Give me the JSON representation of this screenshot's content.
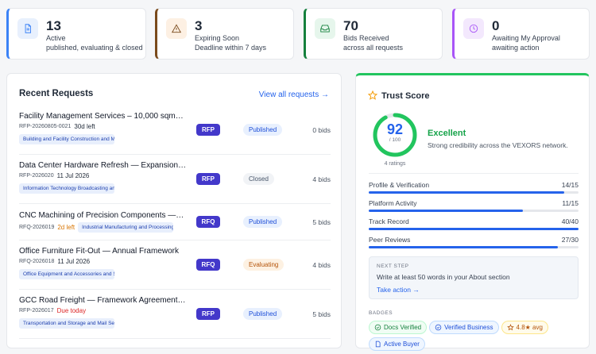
{
  "stats": [
    {
      "value": 13,
      "label": "Active",
      "sub": "published, evaluating & closed",
      "color": "#3b82f6",
      "bg": "#e8f0fd"
    },
    {
      "value": 3,
      "label": "Expiring Soon",
      "sub": "Deadline within 7 days",
      "color": "#7a4a1c",
      "bg": "#fdf0e3"
    },
    {
      "value": 70,
      "label": "Bids Received",
      "sub": "across all requests",
      "color": "#15803d",
      "bg": "#e6f6ec"
    },
    {
      "value": 0,
      "label": "Awaiting My Approval",
      "sub": "awaiting action",
      "color": "#a855f7",
      "bg": "#f3e8fd"
    }
  ],
  "recent": {
    "title": "Recent Requests",
    "link": "View all requests →",
    "rows": [
      {
        "title": "Facility Management Services – 10,000 sqm…",
        "id": "RFP-20260805-0021",
        "when": "30d left",
        "when_color": "#1f2937",
        "tag": "Building and Facility Construction and Maintenance",
        "type": "RFP",
        "status": "Published",
        "bids": "0 bids"
      },
      {
        "title": "Data Center Hardware Refresh — Expansion…",
        "id": "RFP-2026020",
        "when": "11 Jul 2026",
        "when_color": "#1f2937",
        "tag": "Information Technology Broadcasting and Telecommunications",
        "type": "RFP",
        "status": "Closed",
        "bids": "4 bids"
      },
      {
        "title": "CNC Machining of Precision Components —…",
        "id": "RFQ-2026019",
        "when": "2d left",
        "when_color": "#d97706",
        "tag": "Industrial Manufacturing and Processing Machinery",
        "type": "RFQ",
        "status": "Published",
        "bids": "5 bids"
      },
      {
        "title": "Office Furniture Fit-Out — Annual Framework",
        "id": "RFQ-2026018",
        "when": "11 Jul 2026",
        "when_color": "#1f2937",
        "tag": "Office Equipment and Accessories and Supplies",
        "type": "RFQ",
        "status": "Evaluating",
        "bids": "4 bids"
      },
      {
        "title": "GCC Road Freight — Framework Agreement…",
        "id": "RFP-2026017",
        "when": "Due today",
        "when_color": "#dc2626",
        "tag": "Transportation and Storage and Mail Services",
        "type": "RFP",
        "status": "Published",
        "bids": "5 bids"
      }
    ]
  },
  "trust": {
    "title": "Trust Score",
    "score": 92,
    "max": 100,
    "max_label": "/ 100",
    "rating": "Excellent",
    "desc": "Strong credibility across the VEXORS network.",
    "ratings": "4 ratings",
    "metrics": [
      {
        "name": "Profile & Verification",
        "score": 14,
        "max": 15,
        "label": "14/15"
      },
      {
        "name": "Platform Activity",
        "score": 11,
        "max": 15,
        "label": "11/15"
      },
      {
        "name": "Track Record",
        "score": 40,
        "max": 40,
        "label": "40/40"
      },
      {
        "name": "Peer Reviews",
        "score": 27,
        "max": 30,
        "label": "27/30"
      }
    ],
    "next_step": {
      "heading": "NEXT STEP",
      "text": "Write at least 50 words in your About section",
      "action": "Take action →"
    },
    "badges_heading": "BADGES",
    "badges": [
      {
        "text": "Docs Verified",
        "kind": "green"
      },
      {
        "text": "Verified Business",
        "kind": "blue"
      },
      {
        "text": "4.8★ avg",
        "kind": "amber"
      },
      {
        "text": "Active Buyer",
        "kind": "blue"
      }
    ]
  }
}
